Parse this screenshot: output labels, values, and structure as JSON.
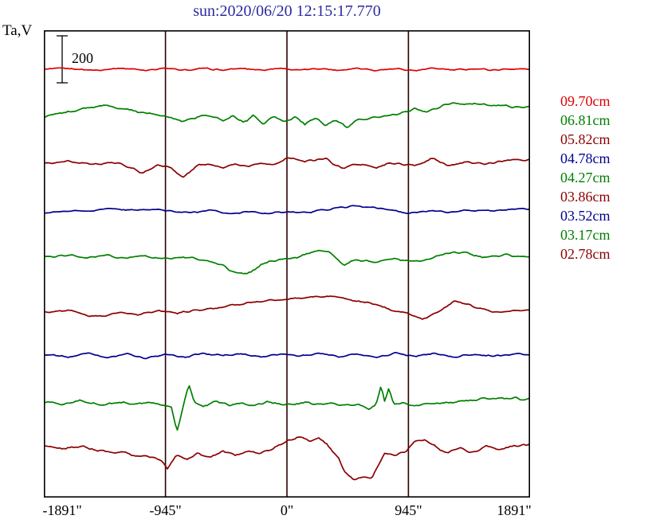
{
  "title": "sun:2020/06/20 12:15:17.770",
  "y_axis_label": "Ta,V",
  "scale_bar": {
    "label": "200"
  },
  "colors": {
    "title": "#2a2aa2",
    "border": "#000000",
    "grid": "#2b0000",
    "text": "#000000",
    "red": "#dd0000",
    "green": "#007f00",
    "maroon": "#8b0000",
    "navy": "#000090"
  },
  "chart_data": {
    "type": "line",
    "title": "sun:2020/06/20 12:15:17.770",
    "x_unit": "arcsec",
    "x_range": [
      -1891,
      1891
    ],
    "x_ticks": [
      {
        "label": "-1891\"",
        "value": -1891
      },
      {
        "label": "-945\"",
        "value": -945
      },
      {
        "label": "0\"",
        "value": 0
      },
      {
        "label": "945\"",
        "value": 945
      },
      {
        "label": "1891\"",
        "value": 1891
      }
    ],
    "gridlines": [
      -945,
      0,
      945
    ],
    "scale_bar_volts": 200,
    "legend_position": "right",
    "series_note": "stacked antenna-temperature scans; y values are volts relative to each trace baseline",
    "series": [
      {
        "name": "09.70cm",
        "color": "#dd0000",
        "baseline_frac": 0.0835,
        "noise_v": 5,
        "points": [
          [
            -1891,
            0
          ],
          [
            -1700,
            3
          ],
          [
            -1500,
            -4
          ],
          [
            -1300,
            5
          ],
          [
            -1100,
            -3
          ],
          [
            -950,
            4
          ],
          [
            -800,
            -5
          ],
          [
            -650,
            3
          ],
          [
            -500,
            -4
          ],
          [
            -350,
            4
          ],
          [
            -200,
            -3
          ],
          [
            -50,
            5
          ],
          [
            100,
            -5
          ],
          [
            250,
            4
          ],
          [
            400,
            -4
          ],
          [
            550,
            6
          ],
          [
            700,
            -4
          ],
          [
            850,
            3
          ],
          [
            1000,
            -6
          ],
          [
            1150,
            4
          ],
          [
            1300,
            -4
          ],
          [
            1450,
            3
          ],
          [
            1600,
            -3
          ],
          [
            1750,
            2
          ],
          [
            1891,
            0
          ]
        ]
      },
      {
        "name": "06.81cm",
        "color": "#007f00",
        "baseline_frac": 0.179,
        "noise_v": 7,
        "points": [
          [
            -1891,
            -13
          ],
          [
            -1600,
            20
          ],
          [
            -1430,
            37
          ],
          [
            -1250,
            20
          ],
          [
            -1050,
            0
          ],
          [
            -900,
            -15
          ],
          [
            -810,
            -30
          ],
          [
            -700,
            -12
          ],
          [
            -600,
            -5
          ],
          [
            -500,
            -30
          ],
          [
            -420,
            -5
          ],
          [
            -340,
            -35
          ],
          [
            -260,
            -8
          ],
          [
            -180,
            -40
          ],
          [
            -100,
            -10
          ],
          [
            -20,
            -35
          ],
          [
            60,
            -12
          ],
          [
            140,
            -45
          ],
          [
            220,
            -18
          ],
          [
            300,
            -50
          ],
          [
            380,
            -25
          ],
          [
            460,
            -55
          ],
          [
            560,
            -25
          ],
          [
            700,
            -15
          ],
          [
            850,
            -5
          ],
          [
            990,
            20
          ],
          [
            1100,
            8
          ],
          [
            1240,
            40
          ],
          [
            1420,
            45
          ],
          [
            1600,
            38
          ],
          [
            1750,
            30
          ],
          [
            1891,
            30
          ]
        ]
      },
      {
        "name": "05.82cm",
        "color": "#8b0000",
        "baseline_frac": 0.2845,
        "noise_v": 7,
        "points": [
          [
            -1891,
            0
          ],
          [
            -1700,
            8
          ],
          [
            -1520,
            -8
          ],
          [
            -1320,
            4
          ],
          [
            -1120,
            -43
          ],
          [
            -1000,
            -8
          ],
          [
            -900,
            -22
          ],
          [
            -806,
            -57
          ],
          [
            -700,
            -12
          ],
          [
            -600,
            -2
          ],
          [
            -500,
            -20
          ],
          [
            -400,
            -6
          ],
          [
            -300,
            -16
          ],
          [
            -200,
            2
          ],
          [
            -100,
            -10
          ],
          [
            0,
            23
          ],
          [
            140,
            10
          ],
          [
            300,
            20
          ],
          [
            430,
            -23
          ],
          [
            550,
            -5
          ],
          [
            700,
            -18
          ],
          [
            850,
            2
          ],
          [
            1000,
            -14
          ],
          [
            1120,
            23
          ],
          [
            1250,
            -10
          ],
          [
            1400,
            8
          ],
          [
            1550,
            -4
          ],
          [
            1700,
            12
          ],
          [
            1891,
            17
          ]
        ]
      },
      {
        "name": "04.78cm",
        "color": "#000090",
        "baseline_frac": 0.39,
        "noise_v": 5,
        "points": [
          [
            -1891,
            0
          ],
          [
            -1700,
            4
          ],
          [
            -1500,
            10
          ],
          [
            -1360,
            17
          ],
          [
            -1200,
            8
          ],
          [
            -1050,
            14
          ],
          [
            -900,
            6
          ],
          [
            -750,
            0
          ],
          [
            -600,
            8
          ],
          [
            -450,
            -3
          ],
          [
            -300,
            4
          ],
          [
            -150,
            -4
          ],
          [
            0,
            3
          ],
          [
            180,
            0
          ],
          [
            372,
            20
          ],
          [
            520,
            27
          ],
          [
            660,
            22
          ],
          [
            806,
            12
          ],
          [
            950,
            -6
          ],
          [
            1100,
            8
          ],
          [
            1250,
            2
          ],
          [
            1400,
            10
          ],
          [
            1550,
            6
          ],
          [
            1700,
            13
          ],
          [
            1891,
            13
          ]
        ]
      },
      {
        "name": "04.27cm",
        "color": "#007f00",
        "baseline_frac": 0.489,
        "noise_v": 7,
        "points": [
          [
            -1891,
            10
          ],
          [
            -1700,
            17
          ],
          [
            -1550,
            6
          ],
          [
            -1400,
            14
          ],
          [
            -1250,
            0
          ],
          [
            -1100,
            10
          ],
          [
            -950,
            -2
          ],
          [
            -800,
            8
          ],
          [
            -650,
            -8
          ],
          [
            -520,
            -22
          ],
          [
            -434,
            -50
          ],
          [
            -350,
            -67
          ],
          [
            -280,
            -55
          ],
          [
            -200,
            -22
          ],
          [
            -100,
            -8
          ],
          [
            0,
            0
          ],
          [
            120,
            12
          ],
          [
            250,
            33
          ],
          [
            330,
            25
          ],
          [
            440,
            -27
          ],
          [
            550,
            -6
          ],
          [
            700,
            -14
          ],
          [
            850,
            -2
          ],
          [
            1000,
            -12
          ],
          [
            1120,
            -2
          ],
          [
            1240,
            27
          ],
          [
            1400,
            23
          ],
          [
            1520,
            8
          ],
          [
            1680,
            14
          ],
          [
            1891,
            10
          ]
        ]
      },
      {
        "name": "03.86cm",
        "color": "#8b0000",
        "baseline_frac": 0.596,
        "noise_v": 6,
        "points": [
          [
            -1891,
            -17
          ],
          [
            -1700,
            -8
          ],
          [
            -1550,
            -27
          ],
          [
            -1426,
            -33
          ],
          [
            -1300,
            -12
          ],
          [
            -1150,
            -24
          ],
          [
            -1000,
            -8
          ],
          [
            -850,
            -20
          ],
          [
            -700,
            -6
          ],
          [
            -550,
            2
          ],
          [
            -400,
            17
          ],
          [
            -250,
            28
          ],
          [
            -100,
            38
          ],
          [
            50,
            44
          ],
          [
            200,
            52
          ],
          [
            330,
            53
          ],
          [
            470,
            40
          ],
          [
            620,
            27
          ],
          [
            800,
            0
          ],
          [
            950,
            -24
          ],
          [
            1054,
            -47
          ],
          [
            1180,
            -12
          ],
          [
            1302,
            33
          ],
          [
            1450,
            10
          ],
          [
            1600,
            -12
          ],
          [
            1750,
            -6
          ],
          [
            1891,
            -7
          ]
        ]
      },
      {
        "name": "03.52cm",
        "color": "#000090",
        "baseline_frac": 0.695,
        "noise_v": 6,
        "points": [
          [
            -1891,
            0
          ],
          [
            -1700,
            -8
          ],
          [
            -1550,
            8
          ],
          [
            -1400,
            -10
          ],
          [
            -1250,
            4
          ],
          [
            -1100,
            -14
          ],
          [
            -950,
            2
          ],
          [
            -800,
            -8
          ],
          [
            -650,
            8
          ],
          [
            -500,
            -4
          ],
          [
            -350,
            4
          ],
          [
            -200,
            -8
          ],
          [
            -50,
            4
          ],
          [
            100,
            -4
          ],
          [
            250,
            8
          ],
          [
            400,
            -8
          ],
          [
            550,
            4
          ],
          [
            700,
            -12
          ],
          [
            850,
            8
          ],
          [
            1000,
            -4
          ],
          [
            1150,
            4
          ],
          [
            1300,
            -8
          ],
          [
            1450,
            4
          ],
          [
            1600,
            -4
          ],
          [
            1750,
            4
          ],
          [
            1891,
            0
          ]
        ]
      },
      {
        "name": "03.17cm",
        "color": "#007f00",
        "baseline_frac": 0.7956,
        "noise_v": 8,
        "points": [
          [
            -1891,
            0
          ],
          [
            -1750,
            -10
          ],
          [
            -1600,
            8
          ],
          [
            -1450,
            -14
          ],
          [
            -1300,
            0
          ],
          [
            -1150,
            -8
          ],
          [
            -1000,
            -2
          ],
          [
            -900,
            -22
          ],
          [
            -856,
            -123
          ],
          [
            -812,
            -30
          ],
          [
            -763,
            73
          ],
          [
            -720,
            -2
          ],
          [
            -650,
            -14
          ],
          [
            -550,
            0
          ],
          [
            -450,
            -10
          ],
          [
            -350,
            -4
          ],
          [
            -250,
            -14
          ],
          [
            -150,
            0
          ],
          [
            -50,
            -8
          ],
          [
            50,
            -10
          ],
          [
            150,
            0
          ],
          [
            250,
            -10
          ],
          [
            350,
            -4
          ],
          [
            450,
            -14
          ],
          [
            560,
            -8
          ],
          [
            640,
            -33
          ],
          [
            692,
            -10
          ],
          [
            732,
            70
          ],
          [
            762,
            -6
          ],
          [
            792,
            60
          ],
          [
            832,
            -12
          ],
          [
            900,
            -4
          ],
          [
            1000,
            -14
          ],
          [
            1100,
            -8
          ],
          [
            1250,
            0
          ],
          [
            1400,
            8
          ],
          [
            1550,
            14
          ],
          [
            1700,
            18
          ],
          [
            1891,
            13
          ]
        ]
      },
      {
        "name": "02.78cm",
        "color": "#8b0000",
        "baseline_frac": 0.8995,
        "noise_v": 8,
        "points": [
          [
            -1891,
            23
          ],
          [
            -1750,
            10
          ],
          [
            -1600,
            18
          ],
          [
            -1450,
            0
          ],
          [
            -1300,
            -10
          ],
          [
            -1150,
            -22
          ],
          [
            -1000,
            -34
          ],
          [
            -930,
            -73
          ],
          [
            -860,
            -22
          ],
          [
            -780,
            -40
          ],
          [
            -700,
            -12
          ],
          [
            -600,
            -28
          ],
          [
            -500,
            -4
          ],
          [
            -400,
            -20
          ],
          [
            -300,
            0
          ],
          [
            -200,
            -14
          ],
          [
            -100,
            14
          ],
          [
            0,
            40
          ],
          [
            100,
            60
          ],
          [
            180,
            40
          ],
          [
            250,
            57
          ],
          [
            310,
            30
          ],
          [
            400,
            -30
          ],
          [
            440,
            -80
          ],
          [
            520,
            -130
          ],
          [
            600,
            -110
          ],
          [
            660,
            -122
          ],
          [
            713,
            -60
          ],
          [
            760,
            -12
          ],
          [
            850,
            -22
          ],
          [
            930,
            0
          ],
          [
            992,
            40
          ],
          [
            1070,
            47
          ],
          [
            1147,
            20
          ],
          [
            1250,
            -14
          ],
          [
            1350,
            10
          ],
          [
            1450,
            -8
          ],
          [
            1550,
            20
          ],
          [
            1650,
            6
          ],
          [
            1750,
            18
          ],
          [
            1891,
            27
          ]
        ]
      }
    ]
  }
}
